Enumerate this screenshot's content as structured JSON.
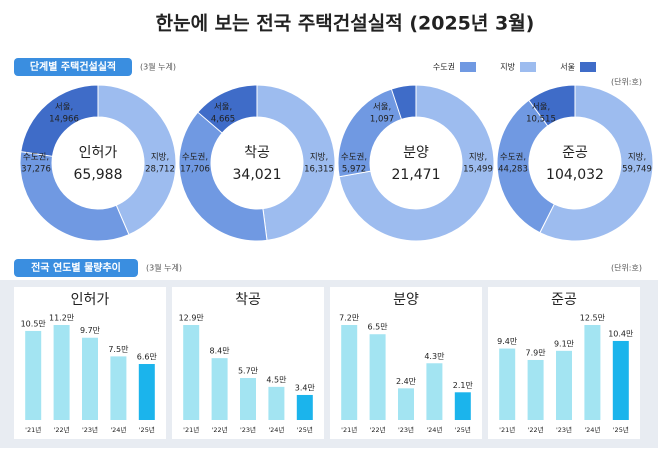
{
  "title": "한눈에 보는 전국 주택건설실적 (2025년 3월)",
  "section1": {
    "title": "단계별 주택건설실적",
    "note": "(3월 누계)",
    "unit": "(단위:호)"
  },
  "section2": {
    "title": "전국 연도별 물량추이",
    "note": "(3월 누계)",
    "unit": "(단위:호)"
  },
  "chart_data": [
    {
      "type": "donut",
      "title": "인허가",
      "total": 65988,
      "total_label": "65,988",
      "categories": [
        "수도권",
        "지방",
        "서울"
      ],
      "name_labels": [
        "수도권,",
        "지방,",
        "서울,"
      ],
      "values": [
        37276,
        28712,
        14966
      ],
      "value_labels": [
        "37,276",
        "28,712",
        "14,966"
      ],
      "colors": [
        "#7099e2",
        "#9dbcef",
        "#3f6cc8"
      ]
    },
    {
      "type": "donut",
      "title": "착공",
      "total": 34021,
      "total_label": "34,021",
      "categories": [
        "수도권",
        "지방",
        "서울"
      ],
      "name_labels": [
        "수도권,",
        "지방,",
        "서울,"
      ],
      "values": [
        17706,
        16315,
        4665
      ],
      "value_labels": [
        "17,706",
        "16,315",
        "4,665"
      ],
      "colors": [
        "#7099e2",
        "#9dbcef",
        "#3f6cc8"
      ]
    },
    {
      "type": "donut",
      "title": "분양",
      "total": 21471,
      "total_label": "21,471",
      "categories": [
        "수도권",
        "지방",
        "서울"
      ],
      "name_labels": [
        "수도권,",
        "지방,",
        "서울,"
      ],
      "values": [
        5972,
        15499,
        1097
      ],
      "value_labels": [
        "5,972",
        "15,499",
        "1,097"
      ],
      "colors": [
        "#7099e2",
        "#9dbcef",
        "#3f6cc8"
      ]
    },
    {
      "type": "donut",
      "title": "준공",
      "total": 104032,
      "total_label": "104,032",
      "categories": [
        "수도권",
        "지방",
        "서울"
      ],
      "name_labels": [
        "수도권,",
        "지방,",
        "서울,"
      ],
      "values": [
        44283,
        59749,
        10515
      ],
      "value_labels": [
        "44,283",
        "59,749",
        "10,515"
      ],
      "colors": [
        "#7099e2",
        "#9dbcef",
        "#3f6cc8"
      ]
    },
    {
      "type": "bar",
      "title": "인허가",
      "categories": [
        "'21년",
        "'22년",
        "'23년",
        "'24년",
        "'25년"
      ],
      "values": [
        10.5,
        11.2,
        9.7,
        7.5,
        6.6
      ],
      "value_labels": [
        "10.5만",
        "11.2만",
        "9.7만",
        "7.5만",
        "6.6만"
      ],
      "colors": [
        "#a3e4f2",
        "#a3e4f2",
        "#a3e4f2",
        "#a3e4f2",
        "#1bb4ec"
      ]
    },
    {
      "type": "bar",
      "title": "착공",
      "categories": [
        "'21년",
        "'22년",
        "'23년",
        "'24년",
        "'25년"
      ],
      "values": [
        12.9,
        8.4,
        5.7,
        4.5,
        3.4
      ],
      "value_labels": [
        "12.9만",
        "8.4만",
        "5.7만",
        "4.5만",
        "3.4만"
      ],
      "colors": [
        "#a3e4f2",
        "#a3e4f2",
        "#a3e4f2",
        "#a3e4f2",
        "#1bb4ec"
      ]
    },
    {
      "type": "bar",
      "title": "분양",
      "categories": [
        "'21년",
        "'22년",
        "'23년",
        "'24년",
        "'25년"
      ],
      "values": [
        7.2,
        6.5,
        2.4,
        4.3,
        2.1
      ],
      "value_labels": [
        "7.2만",
        "6.5만",
        "2.4만",
        "4.3만",
        "2.1만"
      ],
      "colors": [
        "#a3e4f2",
        "#a3e4f2",
        "#a3e4f2",
        "#a3e4f2",
        "#1bb4ec"
      ]
    },
    {
      "type": "bar",
      "title": "준공",
      "categories": [
        "'21년",
        "'22년",
        "'23년",
        "'24년",
        "'25년"
      ],
      "values": [
        9.4,
        7.9,
        9.1,
        12.5,
        10.4
      ],
      "value_labels": [
        "9.4만",
        "7.9만",
        "9.1만",
        "12.5만",
        "10.4만"
      ],
      "colors": [
        "#a3e4f2",
        "#a3e4f2",
        "#a3e4f2",
        "#a3e4f2",
        "#1bb4ec"
      ]
    }
  ]
}
